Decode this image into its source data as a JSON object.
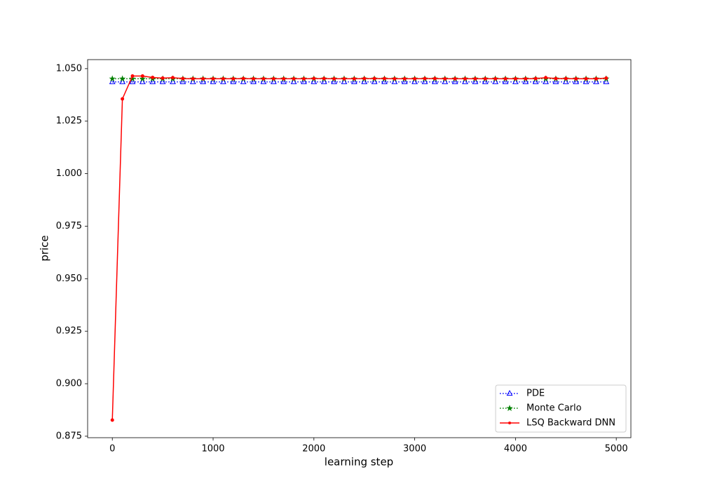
{
  "chart_data": {
    "type": "line",
    "xlabel": "learning step",
    "ylabel": "price",
    "x": [
      0,
      100,
      200,
      300,
      400,
      500,
      600,
      700,
      800,
      900,
      1000,
      1100,
      1200,
      1300,
      1400,
      1500,
      1600,
      1700,
      1800,
      1900,
      2000,
      2100,
      2200,
      2300,
      2400,
      2500,
      2600,
      2700,
      2800,
      2900,
      3000,
      3100,
      3200,
      3300,
      3400,
      3500,
      3600,
      3700,
      3800,
      3900,
      4000,
      4100,
      4200,
      4300,
      4400,
      4500,
      4600,
      4700,
      4800,
      4900
    ],
    "series": [
      {
        "name": "PDE",
        "color": "#0000ff",
        "linestyle": "dotted",
        "marker": "triangle",
        "values": [
          1.0437,
          1.0437,
          1.0437,
          1.0437,
          1.0437,
          1.0437,
          1.0437,
          1.0437,
          1.0437,
          1.0437,
          1.0437,
          1.0437,
          1.0437,
          1.0437,
          1.0437,
          1.0437,
          1.0437,
          1.0437,
          1.0437,
          1.0437,
          1.0437,
          1.0437,
          1.0437,
          1.0437,
          1.0437,
          1.0437,
          1.0437,
          1.0437,
          1.0437,
          1.0437,
          1.0437,
          1.0437,
          1.0437,
          1.0437,
          1.0437,
          1.0437,
          1.0437,
          1.0437,
          1.0437,
          1.0437,
          1.0437,
          1.0437,
          1.0437,
          1.0437,
          1.0437,
          1.0437,
          1.0437,
          1.0437,
          1.0437,
          1.0437
        ]
      },
      {
        "name": "Monte Carlo",
        "color": "#008000",
        "linestyle": "dotted",
        "marker": "star",
        "values": [
          1.0452,
          1.0452,
          1.0452,
          1.0452,
          1.0452,
          1.0452,
          1.0452,
          1.0452,
          1.0452,
          1.0452,
          1.0452,
          1.0452,
          1.0452,
          1.0452,
          1.0452,
          1.0452,
          1.0452,
          1.0452,
          1.0452,
          1.0452,
          1.0452,
          1.0452,
          1.0452,
          1.0452,
          1.0452,
          1.0452,
          1.0452,
          1.0452,
          1.0452,
          1.0452,
          1.0452,
          1.0452,
          1.0452,
          1.0452,
          1.0452,
          1.0452,
          1.0452,
          1.0452,
          1.0452,
          1.0452,
          1.0452,
          1.0452,
          1.0452,
          1.0452,
          1.0452,
          1.0452,
          1.0452,
          1.0452,
          1.0452,
          1.0452
        ]
      },
      {
        "name": "LSQ Backward DNN",
        "color": "#ff0000",
        "linestyle": "solid",
        "marker": "dot",
        "values": [
          0.8827,
          1.0356,
          1.0465,
          1.0465,
          1.0458,
          1.0455,
          1.0457,
          1.0453,
          1.0452,
          1.0452,
          1.0452,
          1.0452,
          1.0452,
          1.0453,
          1.0452,
          1.0452,
          1.0452,
          1.0452,
          1.0452,
          1.0452,
          1.0453,
          1.0453,
          1.0452,
          1.0452,
          1.0452,
          1.0453,
          1.0453,
          1.0453,
          1.0452,
          1.0452,
          1.0452,
          1.0453,
          1.0453,
          1.0452,
          1.0452,
          1.0452,
          1.0452,
          1.0452,
          1.0452,
          1.0452,
          1.0452,
          1.0452,
          1.0453,
          1.0457,
          1.0453,
          1.0453,
          1.0452,
          1.0452,
          1.0452,
          1.0455
        ]
      }
    ],
    "xlim": [
      -245,
      5145
    ],
    "xticks": [
      0,
      1000,
      2000,
      3000,
      4000,
      5000
    ],
    "ylim": [
      0.8743,
      1.0543
    ],
    "yticks": [
      0.875,
      {
        "value": 0.9,
        "label": "0.900"
      },
      0.925,
      {
        "value": 0.95,
        "label": "0.950"
      },
      0.975,
      {
        "value": 1.0,
        "label": "1.000"
      },
      1.025,
      {
        "value": 1.05,
        "label": "1.050"
      }
    ],
    "grid": false,
    "legend": "lower right"
  }
}
